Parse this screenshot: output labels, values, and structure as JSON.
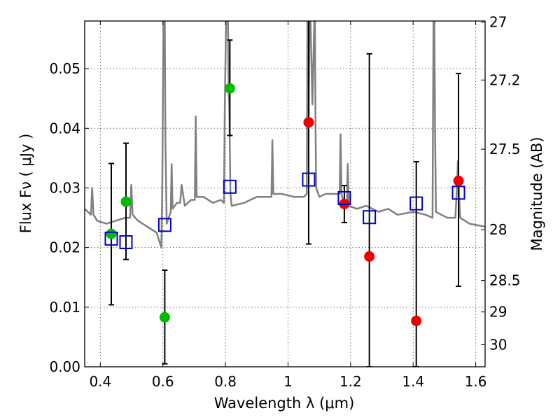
{
  "chart_data": {
    "type": "scatter",
    "xlabel": "Wavelength  λ (μm)",
    "ylabel_left": "Flux  Fν  ( μJy )",
    "ylabel_right": "Magnitude (AB)",
    "xlim": [
      0.35,
      1.63
    ],
    "ylim": [
      0.0,
      0.058
    ],
    "x_ticks": [
      0.4,
      0.6,
      0.8,
      1.0,
      1.2,
      1.4,
      1.6
    ],
    "x_tick_labels": [
      "0.4",
      "0.6",
      "0.8",
      "1",
      "1.2",
      "1.4",
      "1.6"
    ],
    "y_ticks": [
      0.0,
      0.01,
      0.02,
      0.03,
      0.04,
      0.05
    ],
    "y_tick_labels": [
      "0.00",
      "0.01",
      "0.02",
      "0.03",
      "0.04",
      "0.05"
    ],
    "right_ticks": [
      {
        "label": "27",
        "flux": 0.0578
      },
      {
        "label": "27.2",
        "flux": 0.0481
      },
      {
        "label": "27.5",
        "flux": 0.0365
      },
      {
        "label": "28",
        "flux": 0.023
      },
      {
        "label": "28.5",
        "flux": 0.0145
      },
      {
        "label": "29",
        "flux": 0.0092
      },
      {
        "label": "30",
        "flux": 0.0037
      }
    ],
    "grid": true,
    "series": [
      {
        "name": "observed-green",
        "color": "#00bb00",
        "marker": "circle",
        "x": [
          0.435,
          0.482,
          0.606,
          0.814
        ],
        "y": [
          0.0223,
          0.0277,
          0.0083,
          0.0467
        ],
        "yerr_low": [
          0.0104,
          0.018,
          0.0005,
          0.0388
        ],
        "yerr_high": [
          0.0341,
          0.0375,
          0.0162,
          0.0548
        ]
      },
      {
        "name": "observed-red",
        "color": "#ee0000",
        "marker": "circle",
        "x": [
          1.066,
          1.18,
          1.26,
          1.41,
          1.545
        ],
        "y": [
          0.041,
          0.0273,
          0.0185,
          0.0077,
          0.0312
        ],
        "yerr_low": [
          0.0206,
          0.0242,
          0.0,
          0.0,
          0.0135
        ],
        "yerr_high": [
          0.0613,
          0.0304,
          0.0525,
          0.0344,
          0.0492
        ]
      },
      {
        "name": "model-photometry",
        "color": "#0000cc",
        "marker": "square-open",
        "x": [
          0.435,
          0.482,
          0.606,
          0.814,
          1.066,
          1.18,
          1.26,
          1.41,
          1.545
        ],
        "y": [
          0.0215,
          0.0209,
          0.0238,
          0.0302,
          0.0314,
          0.0283,
          0.0251,
          0.0274,
          0.0292
        ]
      }
    ],
    "spectrum": {
      "name": "model-spectrum",
      "color": "#808080",
      "x": [
        0.35,
        0.37,
        0.374,
        0.378,
        0.39,
        0.42,
        0.45,
        0.48,
        0.495,
        0.499,
        0.503,
        0.52,
        0.55,
        0.58,
        0.595,
        0.598,
        0.602,
        0.604,
        0.606,
        0.608,
        0.612,
        0.625,
        0.628,
        0.631,
        0.645,
        0.655,
        0.66,
        0.67,
        0.69,
        0.702,
        0.705,
        0.708,
        0.73,
        0.76,
        0.785,
        0.795,
        0.798,
        0.802,
        0.806,
        0.808,
        0.81,
        0.812,
        0.816,
        0.82,
        0.86,
        0.9,
        0.93,
        0.947,
        0.95,
        0.953,
        0.98,
        1.02,
        1.05,
        1.06,
        1.062,
        1.064,
        1.066,
        1.068,
        1.072,
        1.078,
        1.084,
        1.086,
        1.088,
        1.09,
        1.1,
        1.12,
        1.14,
        1.165,
        1.168,
        1.171,
        1.18,
        1.188,
        1.191,
        1.194,
        1.22,
        1.25,
        1.29,
        1.32,
        1.35,
        1.4,
        1.44,
        1.462,
        1.465,
        1.468,
        1.47,
        1.473,
        1.49,
        1.51,
        1.535,
        1.54,
        1.543,
        1.546,
        1.55,
        1.58,
        1.63
      ],
      "y": [
        0.0265,
        0.0255,
        0.03,
        0.0255,
        0.0245,
        0.024,
        0.0245,
        0.025,
        0.025,
        0.0305,
        0.0255,
        0.0245,
        0.0235,
        0.0225,
        0.02,
        0.03,
        0.058,
        0.058,
        0.058,
        0.038,
        0.024,
        0.026,
        0.034,
        0.0265,
        0.0275,
        0.0275,
        0.0305,
        0.027,
        0.028,
        0.028,
        0.042,
        0.0285,
        0.0285,
        0.0275,
        0.028,
        0.0275,
        0.044,
        0.058,
        0.058,
        0.058,
        0.046,
        0.044,
        0.029,
        0.027,
        0.0275,
        0.0285,
        0.0285,
        0.0285,
        0.038,
        0.029,
        0.029,
        0.0285,
        0.0285,
        0.029,
        0.058,
        0.058,
        0.042,
        0.058,
        0.058,
        0.044,
        0.058,
        0.058,
        0.04,
        0.03,
        0.0285,
        0.029,
        0.029,
        0.029,
        0.039,
        0.029,
        0.027,
        0.027,
        0.034,
        0.027,
        0.0265,
        0.027,
        0.026,
        0.0265,
        0.0255,
        0.026,
        0.0255,
        0.025,
        0.058,
        0.058,
        0.04,
        0.026,
        0.0255,
        0.025,
        0.025,
        0.03,
        0.0345,
        0.03,
        0.025,
        0.024,
        0.0235
      ]
    }
  }
}
